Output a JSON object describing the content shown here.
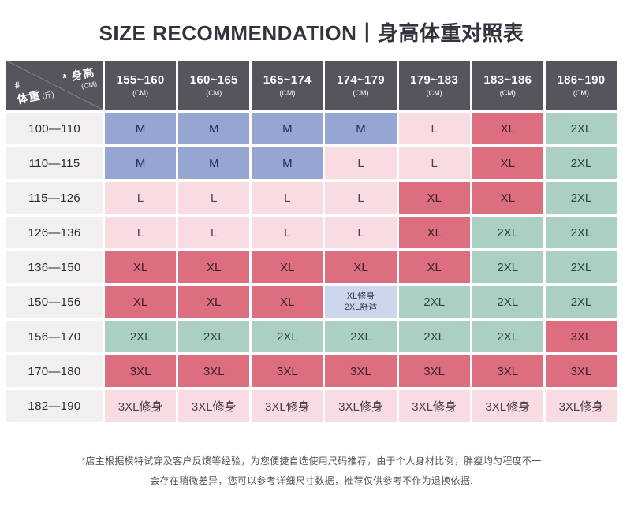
{
  "title": "SIZE RECOMMENDATION丨身高体重对照表",
  "colors": {
    "header_bg": "#55555d",
    "row_label_bg": "#f2eff1",
    "blue": "#97a5d3",
    "pink": "#f8dce2",
    "red": "#dc6e80",
    "green": "#abcfc3",
    "lightblue": "#ccd6ec"
  },
  "text_colors": {
    "blue": "#1f2c55",
    "pink": "#4a4248",
    "red": "#3a2127",
    "green": "#2b453d",
    "lightblue": "#333a4d"
  },
  "table": {
    "corner": {
      "height_label": "* 身高",
      "height_unit": "(CM)",
      "weight_hash": "#",
      "weight_label": "体重",
      "weight_unit": "(斤)"
    },
    "columns": [
      {
        "range": "155~160",
        "unit": "(CM)"
      },
      {
        "range": "160~165",
        "unit": "(CM)"
      },
      {
        "range": "165~174",
        "unit": "(CM)"
      },
      {
        "range": "174~179",
        "unit": "(CM)"
      },
      {
        "range": "179~183",
        "unit": "(CM)"
      },
      {
        "range": "183~186",
        "unit": "(CM)"
      },
      {
        "range": "186~190",
        "unit": "(CM)"
      }
    ],
    "rows": [
      {
        "weight": "100—110",
        "cells": [
          {
            "text": "M",
            "color": "blue"
          },
          {
            "text": "M",
            "color": "blue"
          },
          {
            "text": "M",
            "color": "blue"
          },
          {
            "text": "M",
            "color": "blue"
          },
          {
            "text": "L",
            "color": "pink"
          },
          {
            "text": "XL",
            "color": "red"
          },
          {
            "text": "2XL",
            "color": "green"
          }
        ]
      },
      {
        "weight": "110—115",
        "cells": [
          {
            "text": "M",
            "color": "blue"
          },
          {
            "text": "M",
            "color": "blue"
          },
          {
            "text": "M",
            "color": "blue"
          },
          {
            "text": "L",
            "color": "pink"
          },
          {
            "text": "L",
            "color": "pink"
          },
          {
            "text": "XL",
            "color": "red"
          },
          {
            "text": "2XL",
            "color": "green"
          }
        ]
      },
      {
        "weight": "115—126",
        "cells": [
          {
            "text": "L",
            "color": "pink"
          },
          {
            "text": "L",
            "color": "pink"
          },
          {
            "text": "L",
            "color": "pink"
          },
          {
            "text": "L",
            "color": "pink"
          },
          {
            "text": "XL",
            "color": "red"
          },
          {
            "text": "XL",
            "color": "red"
          },
          {
            "text": "2XL",
            "color": "green"
          }
        ]
      },
      {
        "weight": "126—136",
        "cells": [
          {
            "text": "L",
            "color": "pink"
          },
          {
            "text": "L",
            "color": "pink"
          },
          {
            "text": "L",
            "color": "pink"
          },
          {
            "text": "L",
            "color": "pink"
          },
          {
            "text": "XL",
            "color": "red"
          },
          {
            "text": "2XL",
            "color": "green"
          },
          {
            "text": "2XL",
            "color": "green"
          }
        ]
      },
      {
        "weight": "136—150",
        "cells": [
          {
            "text": "XL",
            "color": "red"
          },
          {
            "text": "XL",
            "color": "red"
          },
          {
            "text": "XL",
            "color": "red"
          },
          {
            "text": "XL",
            "color": "red"
          },
          {
            "text": "XL",
            "color": "red"
          },
          {
            "text": "2XL",
            "color": "green"
          },
          {
            "text": "2XL",
            "color": "green"
          }
        ]
      },
      {
        "weight": "150—156",
        "cells": [
          {
            "text": "XL",
            "color": "red"
          },
          {
            "text": "XL",
            "color": "red"
          },
          {
            "text": "XL",
            "color": "red"
          },
          {
            "text": "XL修身",
            "sub": "2XL舒适",
            "color": "lightblue"
          },
          {
            "text": "2XL",
            "color": "green"
          },
          {
            "text": "2XL",
            "color": "green"
          },
          {
            "text": "2XL",
            "color": "green"
          }
        ]
      },
      {
        "weight": "156—170",
        "cells": [
          {
            "text": "2XL",
            "color": "green"
          },
          {
            "text": "2XL",
            "color": "green"
          },
          {
            "text": "2XL",
            "color": "green"
          },
          {
            "text": "2XL",
            "color": "green"
          },
          {
            "text": "2XL",
            "color": "green"
          },
          {
            "text": "2XL",
            "color": "green"
          },
          {
            "text": "3XL",
            "color": "red"
          }
        ]
      },
      {
        "weight": "170—180",
        "cells": [
          {
            "text": "3XL",
            "color": "red"
          },
          {
            "text": "3XL",
            "color": "red"
          },
          {
            "text": "3XL",
            "color": "red"
          },
          {
            "text": "3XL",
            "color": "red"
          },
          {
            "text": "3XL",
            "color": "red"
          },
          {
            "text": "3XL",
            "color": "red"
          },
          {
            "text": "3XL",
            "color": "red"
          }
        ]
      },
      {
        "weight": "182—190",
        "cells": [
          {
            "text": "3XL修身",
            "color": "pink"
          },
          {
            "text": "3XL修身",
            "color": "pink"
          },
          {
            "text": "3XL修身",
            "color": "pink"
          },
          {
            "text": "3XL修身",
            "color": "pink"
          },
          {
            "text": "3XL修身",
            "color": "pink"
          },
          {
            "text": "3XL修身",
            "color": "pink"
          },
          {
            "text": "3XL修身",
            "color": "pink"
          }
        ]
      }
    ]
  },
  "footer": {
    "line1": "*店主根据模特试穿及客户反馈等经验，为您便捷自选使用尺码推荐，由于个人身材比例，胖瘦均匀程度不一",
    "line2": "会存在稍微差异，您可以参考详细尺寸数据，推荐仅供参考不作为退换依据."
  },
  "chart_data": {
    "type": "table",
    "title": "SIZE RECOMMENDATION丨身高体重对照表",
    "column_axis_label": "身高 (CM)",
    "row_axis_label": "体重 (斤)",
    "columns": [
      "155~160",
      "160~165",
      "165~174",
      "174~179",
      "179~183",
      "183~186",
      "186~190"
    ],
    "rows": [
      "100—110",
      "110—115",
      "115—126",
      "126—136",
      "136—150",
      "150—156",
      "156—170",
      "170—180",
      "182—190"
    ],
    "values": [
      [
        "M",
        "M",
        "M",
        "M",
        "L",
        "XL",
        "2XL"
      ],
      [
        "M",
        "M",
        "M",
        "L",
        "L",
        "XL",
        "2XL"
      ],
      [
        "L",
        "L",
        "L",
        "L",
        "XL",
        "XL",
        "2XL"
      ],
      [
        "L",
        "L",
        "L",
        "L",
        "XL",
        "2XL",
        "2XL"
      ],
      [
        "XL",
        "XL",
        "XL",
        "XL",
        "XL",
        "2XL",
        "2XL"
      ],
      [
        "XL",
        "XL",
        "XL",
        "XL修身/2XL舒适",
        "2XL",
        "2XL",
        "2XL"
      ],
      [
        "2XL",
        "2XL",
        "2XL",
        "2XL",
        "2XL",
        "2XL",
        "3XL"
      ],
      [
        "3XL",
        "3XL",
        "3XL",
        "3XL",
        "3XL",
        "3XL",
        "3XL"
      ],
      [
        "3XL修身",
        "3XL修身",
        "3XL修身",
        "3XL修身",
        "3XL修身",
        "3XL修身",
        "3XL修身"
      ]
    ]
  }
}
